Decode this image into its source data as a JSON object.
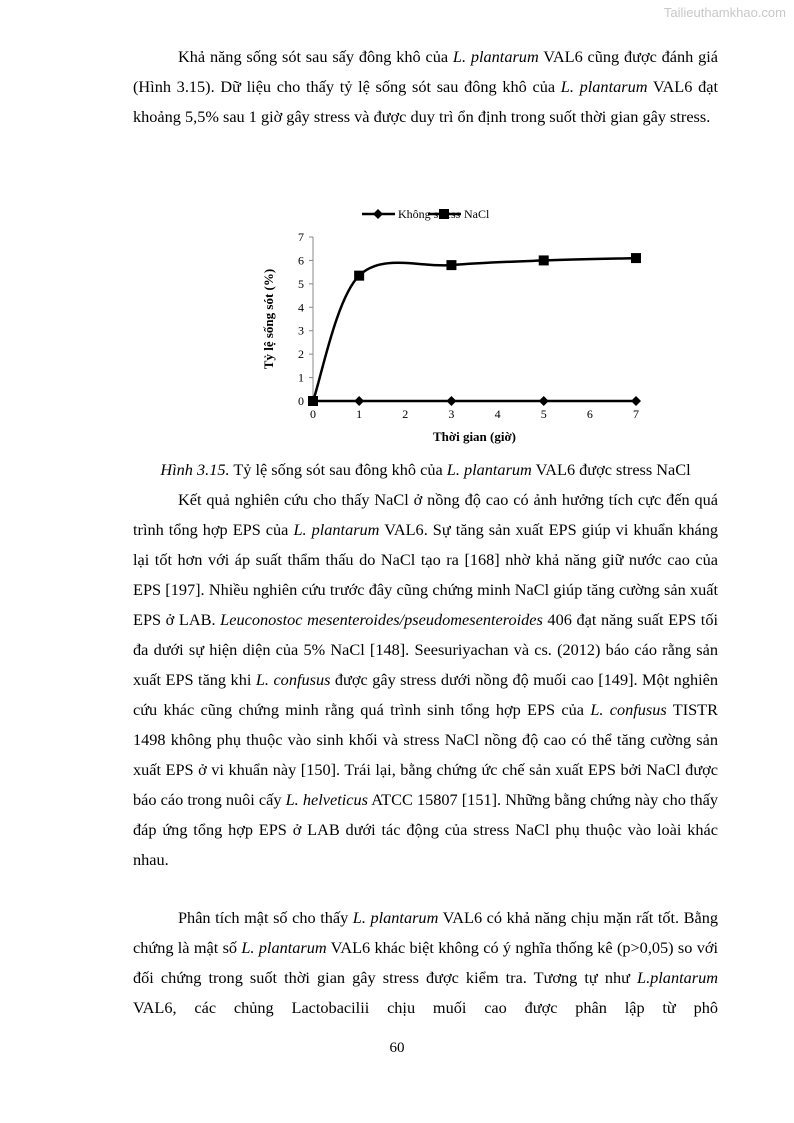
{
  "watermark": "Tailieuthamkhao.com",
  "paragraphs": [
    [
      {
        "t": "Khả năng sống sót sau sấy đông khô của "
      },
      {
        "t": "L. plantarum",
        "i": true
      },
      {
        "t": " VAL6 cũng được đánh giá (Hình 3.15). Dữ liệu cho thấy tỷ lệ sống sót sau đông khô của "
      },
      {
        "t": "L. plantarum",
        "i": true
      },
      {
        "t": " VAL6 đạt khoảng 5,5% sau 1 giờ gây stress và được duy trì ổn định trong suốt thời gian gây stress."
      }
    ],
    [
      {
        "t": "Kết quả nghiên cứu cho thấy NaCl ở nồng độ cao có ảnh hưởng tích cực đến quá trình tổng hợp EPS của "
      },
      {
        "t": "L. plantarum",
        "i": true
      },
      {
        "t": " VAL6. Sự tăng sản xuất EPS giúp vi khuẩn kháng lại tốt hơn với áp suất thẩm thấu do NaCl tạo ra [168] nhờ khả năng giữ nước cao của EPS [197]. Nhiều nghiên cứu trước đây cũng chứng minh NaCl giúp tăng cường sản xuất EPS ở LAB. "
      },
      {
        "t": "Leuconostoc mesenteroides/pseudomesenteroides",
        "i": true
      },
      {
        "t": " 406 đạt năng suất EPS tối đa dưới sự hiện diện của 5% NaCl [148]. Seesuriyachan và cs. (2012) báo cáo rằng sản xuất EPS tăng khi "
      },
      {
        "t": "L. confusus",
        "i": true
      },
      {
        "t": " được gây stress dưới nồng độ muối cao [149]. Một nghiên cứu khác cũng chứng minh rằng quá trình sinh tổng hợp EPS của "
      },
      {
        "t": "L. confusus",
        "i": true
      },
      {
        "t": " TISTR 1498 không phụ thuộc vào sinh khối và stress NaCl nồng độ cao có thể tăng cường sản xuất EPS ở vi khuẩn này [150]. Trái lại, bằng chứng ức chế sản xuất EPS bởi NaCl được báo cáo trong nuôi cấy "
      },
      {
        "t": "L. helveticus",
        "i": true
      },
      {
        "t": " ATCC 15807 [151]. Những bằng chứng này cho thấy đáp ứng tổng hợp EPS ở LAB dưới tác động của stress NaCl phụ thuộc vào loài khác nhau."
      }
    ],
    [
      {
        "t": "Phân tích mật số cho thấy "
      },
      {
        "t": "L. plantarum",
        "i": true
      },
      {
        "t": " VAL6 có khả năng chịu mặn rất tốt. Bằng chứng là mật số "
      },
      {
        "t": "L. plantarum",
        "i": true
      },
      {
        "t": " VAL6 khác biệt không có ý nghĩa thống kê (p>0,05) so với đối chứng trong suốt thời gian gây stress được kiểm tra. Tương tự như "
      },
      {
        "t": "L.plantarum",
        "i": true
      },
      {
        "t": " VAL6, các chủng Lactobacilii chịu muối cao được phân lập từ phô"
      }
    ]
  ],
  "caption": [
    {
      "t": "Hình 3.15.",
      "i": true
    },
    {
      "t": " Tỷ lệ sống sót sau đông khô của "
    },
    {
      "t": "L. plantarum",
      "i": true
    },
    {
      "t": " VAL6 được stress NaCl"
    }
  ],
  "page_number": "60",
  "chart_data": {
    "type": "line",
    "xlabel": "Thời gian (giờ)",
    "ylabel": "Tỷ lệ sống sót (%)",
    "xlim": [
      0,
      7
    ],
    "ylim": [
      0,
      7
    ],
    "xticks": [
      "0",
      "1",
      "2",
      "3",
      "4",
      "5",
      "6",
      "7"
    ],
    "yticks": [
      "0",
      "1",
      "2",
      "3",
      "4",
      "5",
      "6",
      "7"
    ],
    "grid": false,
    "legend": "top",
    "x": [
      0,
      1,
      3,
      5,
      7
    ],
    "series": [
      {
        "name": "Không stress",
        "marker": "diamond",
        "smooth": false,
        "color": "#000000",
        "values": [
          0,
          0,
          0,
          0,
          0
        ]
      },
      {
        "name": "NaCl",
        "marker": "square",
        "smooth": true,
        "color": "#000000",
        "values": [
          0,
          5.35,
          5.8,
          6.0,
          6.1
        ]
      }
    ]
  }
}
